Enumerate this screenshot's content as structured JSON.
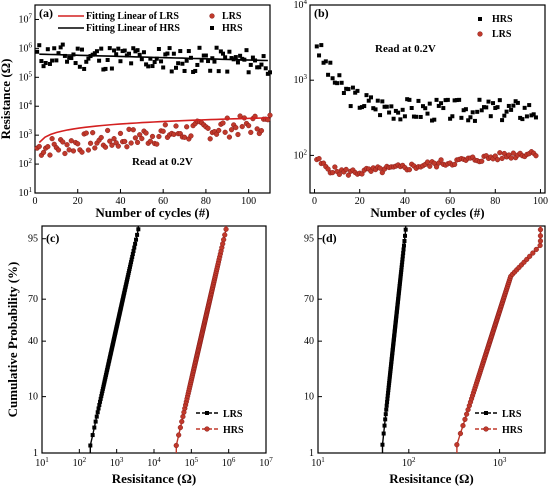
{
  "colors": {
    "black": "#000000",
    "red": "#d42020",
    "redDot": "#c0392b"
  },
  "chart_data": [
    {
      "id": "a",
      "type": "scatter",
      "panel_label": "(a)",
      "xlabel": "Number of cycles (#)",
      "ylabel": "Resistance (Ω)",
      "xlim": [
        0,
        110
      ],
      "ylim_log10": [
        1,
        7.5
      ],
      "yscale": "log",
      "x_ticks": [
        0,
        20,
        40,
        60,
        80,
        100
      ],
      "y_ticks_exp": [
        1,
        2,
        3,
        4,
        5,
        6,
        7
      ],
      "annotation": "Read at 0.2V",
      "legend": [
        {
          "name": "Fitting Linear of LRS",
          "kind": "line",
          "color": "#d42020"
        },
        {
          "name": "Fitting Linear of HRS",
          "kind": "line",
          "color": "#000000"
        },
        {
          "name": "LRS",
          "kind": "dot",
          "color": "#c0392b"
        },
        {
          "name": "HRS",
          "kind": "square",
          "color": "#000000"
        }
      ],
      "series": [
        {
          "name": "HRS",
          "count": 110,
          "x_start": 1,
          "x_step": 1,
          "log10_center": 5.75,
          "log10_slope": -0.002,
          "log10_spread": 0.45,
          "seed": 11
        },
        {
          "name": "LRS",
          "count": 110,
          "x_start": 1,
          "x_step": 1,
          "log10_center": 2.55,
          "log10_slope": 0.008,
          "log10_spread": 0.35,
          "seed": 7
        }
      ],
      "fits": [
        {
          "name": "Fitting Linear of HRS",
          "log10_start": 5.8,
          "log10_end": 5.58
        },
        {
          "name": "Fitting Linear of LRS",
          "log10_start": 2.6,
          "log10_end": 3.6,
          "curve": true
        }
      ]
    },
    {
      "id": "b",
      "type": "scatter",
      "panel_label": "(b)",
      "xlabel": "Number of cycles (#)",
      "ylabel": "",
      "xlim": [
        -2,
        102
      ],
      "ylim_log10": [
        1.5,
        4.0
      ],
      "yscale": "log",
      "x_ticks": [
        0,
        20,
        40,
        60,
        80,
        100
      ],
      "y_ticks_exp": [
        2,
        3,
        4
      ],
      "annotation": "Read at 0.2V",
      "legend": [
        {
          "name": "HRS",
          "kind": "square",
          "color": "#000000"
        },
        {
          "name": "LRS",
          "kind": "dot",
          "color": "#c0392b"
        }
      ],
      "series": [
        {
          "name": "HRS",
          "count": 98,
          "x_start": 1,
          "x_step": 1,
          "decay": {
            "a": 3.5,
            "b": 2.6,
            "tau": 10,
            "slope": 0
          },
          "log10_spread": 0.15,
          "seed": 3
        },
        {
          "name": "LRS",
          "count": 98,
          "x_start": 1,
          "x_step": 1,
          "decay": {
            "a": 1.95,
            "b": 1.7,
            "tau": 6,
            "slope": 0.0035
          },
          "log10_spread": 0.05,
          "seed": 5
        }
      ]
    },
    {
      "id": "c",
      "type": "line",
      "panel_label": "(c)",
      "xlabel": "Resisitance (Ω)",
      "ylabel": "Cumulative Probability (%)",
      "xlim_log10": [
        1,
        7
      ],
      "xscale": "log",
      "x_ticks_exp": [
        1,
        2,
        3,
        4,
        5,
        6,
        7
      ],
      "y_ticks": [
        "1",
        "10",
        "40",
        "70",
        "95"
      ],
      "legend": [
        {
          "name": "LRS",
          "kind": "square",
          "color": "#000000"
        },
        {
          "name": "HRS",
          "kind": "dot",
          "color": "#c0392b"
        }
      ],
      "series": [
        {
          "name": "LRS",
          "color": "#000000",
          "marker": "square",
          "count": 110,
          "log10_min": 2.2,
          "log10_max": 3.7,
          "log10_p0": 2.25,
          "log10_p1": 3.6
        },
        {
          "name": "HRS",
          "color": "#c0392b",
          "marker": "dot",
          "count": 110,
          "log10_min": 4.45,
          "log10_max": 6.0,
          "log10_p0": 4.55,
          "log10_p1": 5.95
        }
      ]
    },
    {
      "id": "d",
      "type": "line",
      "panel_label": "(d)",
      "xlabel": "Resisitance (Ω)",
      "ylabel": "",
      "xlim_log10": [
        1,
        3.5
      ],
      "xscale": "log",
      "x_ticks_exp": [
        1,
        2,
        3
      ],
      "y_ticks": [
        "1",
        "10",
        "40",
        "70",
        "95"
      ],
      "legend": [
        {
          "name": "LRS",
          "kind": "square",
          "color": "#000000"
        },
        {
          "name": "HRS",
          "kind": "dot",
          "color": "#c0392b"
        }
      ],
      "series": [
        {
          "name": "LRS",
          "color": "#000000",
          "marker": "square",
          "count": 98,
          "log10_min": 1.68,
          "log10_max": 2.0,
          "log10_p0": 1.7,
          "log10_p1": 1.97
        },
        {
          "name": "HRS",
          "color": "#c0392b",
          "marker": "dot",
          "count": 98,
          "log10_min": 2.42,
          "log10_max": 3.45,
          "log10_p0": 2.5,
          "log10_p1": 3.3,
          "knee": true
        }
      ]
    }
  ]
}
